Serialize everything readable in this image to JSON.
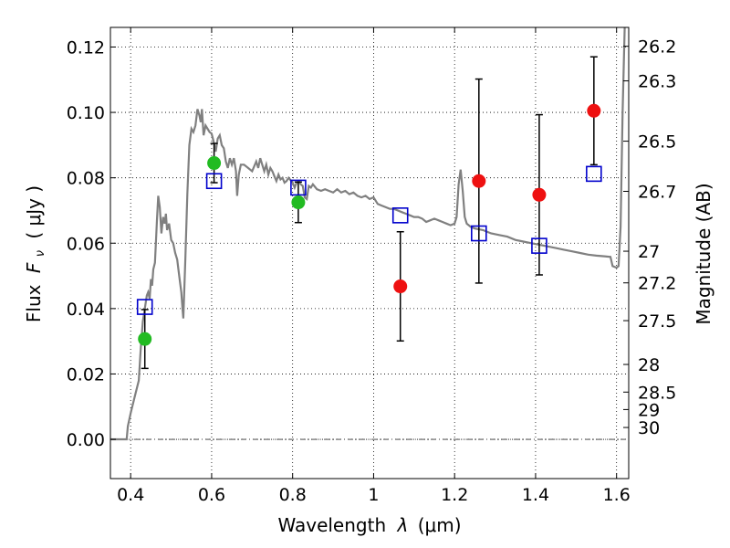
{
  "chart_data": {
    "type": "scatter",
    "xlabel_text": "Wavelength",
    "xlabel_symbol": "λ",
    "xlabel_unit": "(μm)",
    "ylabel_text": "Flux",
    "ylabel_symbol": "F",
    "ylabel_sub": "ν",
    "ylabel_unit": "( μJy )",
    "y2label": "Magnitude (AB)",
    "xlim": [
      0.35,
      1.63
    ],
    "ylim": [
      -0.012,
      0.126
    ],
    "xticks": [
      {
        "v": 0.4,
        "label": "0.4"
      },
      {
        "v": 0.6,
        "label": "0.6"
      },
      {
        "v": 0.8,
        "label": "0.8"
      },
      {
        "v": 1.0,
        "label": "1"
      },
      {
        "v": 1.2,
        "label": "1.2"
      },
      {
        "v": 1.4,
        "label": "1.4"
      },
      {
        "v": 1.6,
        "label": "1.6"
      }
    ],
    "yticks": [
      {
        "v": 0.0,
        "label": "0.00"
      },
      {
        "v": 0.02,
        "label": "0.02"
      },
      {
        "v": 0.04,
        "label": "0.04"
      },
      {
        "v": 0.06,
        "label": "0.06"
      },
      {
        "v": 0.08,
        "label": "0.08"
      },
      {
        "v": 0.1,
        "label": "0.10"
      },
      {
        "v": 0.12,
        "label": "0.12"
      }
    ],
    "mag_ticks": [
      {
        "mag": 26.2,
        "label": "26.2"
      },
      {
        "mag": 26.3,
        "label": "26.3"
      },
      {
        "mag": 26.5,
        "label": "26.5"
      },
      {
        "mag": 26.7,
        "label": "26.7"
      },
      {
        "mag": 27.0,
        "label": "27"
      },
      {
        "mag": 27.2,
        "label": "27.2"
      },
      {
        "mag": 27.5,
        "label": "27.5"
      },
      {
        "mag": 28.0,
        "label": "28"
      },
      {
        "mag": 28.5,
        "label": "28.5"
      },
      {
        "mag": 29.0,
        "label": "29"
      },
      {
        "mag": 30.0,
        "label": "30"
      }
    ],
    "grid": true,
    "zero_line": true,
    "colors": {
      "sed": "#808080",
      "detection": "#22bb22",
      "nondetection": "#ee1111",
      "model": "#0000cc",
      "errorbar": "#000000"
    },
    "detections": [
      {
        "x": 0.435,
        "y": 0.0307,
        "err": 0.009
      },
      {
        "x": 0.606,
        "y": 0.0845,
        "err": 0.006
      },
      {
        "x": 0.814,
        "y": 0.0725,
        "err": 0.0062
      }
    ],
    "nondetections": [
      {
        "x": 1.066,
        "y": 0.0468,
        "err": 0.0167
      },
      {
        "x": 1.26,
        "y": 0.079,
        "err": 0.0312
      },
      {
        "x": 1.409,
        "y": 0.0748,
        "err": 0.0245
      },
      {
        "x": 1.544,
        "y": 0.1005,
        "err": 0.0165
      }
    ],
    "model_photometry": [
      {
        "x": 0.435,
        "y": 0.0405
      },
      {
        "x": 0.606,
        "y": 0.079
      },
      {
        "x": 0.814,
        "y": 0.077
      },
      {
        "x": 1.066,
        "y": 0.0685
      },
      {
        "x": 1.26,
        "y": 0.063
      },
      {
        "x": 1.409,
        "y": 0.0592
      },
      {
        "x": 1.544,
        "y": 0.0812
      }
    ],
    "sed": [
      [
        0.35,
        0.0
      ],
      [
        0.38,
        0.0
      ],
      [
        0.39,
        0.0
      ],
      [
        0.393,
        0.004
      ],
      [
        0.4,
        0.008
      ],
      [
        0.41,
        0.013
      ],
      [
        0.42,
        0.018
      ],
      [
        0.425,
        0.028
      ],
      [
        0.43,
        0.036
      ],
      [
        0.435,
        0.04
      ],
      [
        0.44,
        0.044
      ],
      [
        0.443,
        0.045
      ],
      [
        0.447,
        0.043
      ],
      [
        0.45,
        0.049
      ],
      [
        0.453,
        0.047
      ],
      [
        0.456,
        0.052
      ],
      [
        0.46,
        0.054
      ],
      [
        0.465,
        0.067
      ],
      [
        0.468,
        0.0745
      ],
      [
        0.472,
        0.071
      ],
      [
        0.476,
        0.063
      ],
      [
        0.48,
        0.068
      ],
      [
        0.484,
        0.066
      ],
      [
        0.487,
        0.069
      ],
      [
        0.49,
        0.064
      ],
      [
        0.495,
        0.066
      ],
      [
        0.5,
        0.061
      ],
      [
        0.505,
        0.06
      ],
      [
        0.51,
        0.057
      ],
      [
        0.515,
        0.055
      ],
      [
        0.52,
        0.05
      ],
      [
        0.525,
        0.045
      ],
      [
        0.528,
        0.04
      ],
      [
        0.53,
        0.037
      ],
      [
        0.535,
        0.055
      ],
      [
        0.54,
        0.075
      ],
      [
        0.545,
        0.09
      ],
      [
        0.55,
        0.095
      ],
      [
        0.555,
        0.094
      ],
      [
        0.56,
        0.096
      ],
      [
        0.565,
        0.101
      ],
      [
        0.57,
        0.099
      ],
      [
        0.573,
        0.097
      ],
      [
        0.576,
        0.101
      ],
      [
        0.58,
        0.093
      ],
      [
        0.585,
        0.096
      ],
      [
        0.59,
        0.095
      ],
      [
        0.595,
        0.094
      ],
      [
        0.6,
        0.0935
      ],
      [
        0.605,
        0.091
      ],
      [
        0.61,
        0.088
      ],
      [
        0.615,
        0.092
      ],
      [
        0.62,
        0.093
      ],
      [
        0.625,
        0.09
      ],
      [
        0.63,
        0.089
      ],
      [
        0.635,
        0.085
      ],
      [
        0.64,
        0.083
      ],
      [
        0.645,
        0.086
      ],
      [
        0.65,
        0.084
      ],
      [
        0.655,
        0.086
      ],
      [
        0.66,
        0.082
      ],
      [
        0.663,
        0.0745
      ],
      [
        0.667,
        0.081
      ],
      [
        0.672,
        0.084
      ],
      [
        0.68,
        0.084
      ],
      [
        0.69,
        0.083
      ],
      [
        0.7,
        0.082
      ],
      [
        0.71,
        0.085
      ],
      [
        0.715,
        0.083
      ],
      [
        0.72,
        0.086
      ],
      [
        0.725,
        0.084
      ],
      [
        0.73,
        0.082
      ],
      [
        0.735,
        0.084
      ],
      [
        0.74,
        0.081
      ],
      [
        0.745,
        0.083
      ],
      [
        0.75,
        0.082
      ],
      [
        0.755,
        0.0805
      ],
      [
        0.76,
        0.079
      ],
      [
        0.765,
        0.081
      ],
      [
        0.77,
        0.0795
      ],
      [
        0.775,
        0.08
      ],
      [
        0.78,
        0.0785
      ],
      [
        0.785,
        0.079
      ],
      [
        0.79,
        0.08
      ],
      [
        0.8,
        0.0785
      ],
      [
        0.805,
        0.077
      ],
      [
        0.81,
        0.0785
      ],
      [
        0.815,
        0.079
      ],
      [
        0.82,
        0.078
      ],
      [
        0.825,
        0.0775
      ],
      [
        0.83,
        0.074
      ],
      [
        0.835,
        0.0735
      ],
      [
        0.84,
        0.0775
      ],
      [
        0.845,
        0.077
      ],
      [
        0.85,
        0.078
      ],
      [
        0.86,
        0.0765
      ],
      [
        0.87,
        0.076
      ],
      [
        0.88,
        0.0765
      ],
      [
        0.89,
        0.076
      ],
      [
        0.9,
        0.0755
      ],
      [
        0.91,
        0.0765
      ],
      [
        0.92,
        0.0755
      ],
      [
        0.93,
        0.076
      ],
      [
        0.94,
        0.075
      ],
      [
        0.95,
        0.0755
      ],
      [
        0.96,
        0.0745
      ],
      [
        0.97,
        0.074
      ],
      [
        0.98,
        0.0745
      ],
      [
        0.99,
        0.0735
      ],
      [
        1.0,
        0.074
      ],
      [
        1.01,
        0.072
      ],
      [
        1.02,
        0.0715
      ],
      [
        1.03,
        0.071
      ],
      [
        1.04,
        0.0705
      ],
      [
        1.05,
        0.0705
      ],
      [
        1.06,
        0.07
      ],
      [
        1.07,
        0.0695
      ],
      [
        1.08,
        0.069
      ],
      [
        1.09,
        0.0685
      ],
      [
        1.1,
        0.068
      ],
      [
        1.11,
        0.068
      ],
      [
        1.12,
        0.0675
      ],
      [
        1.13,
        0.0665
      ],
      [
        1.14,
        0.067
      ],
      [
        1.15,
        0.0675
      ],
      [
        1.16,
        0.067
      ],
      [
        1.17,
        0.0665
      ],
      [
        1.18,
        0.066
      ],
      [
        1.19,
        0.0655
      ],
      [
        1.2,
        0.066
      ],
      [
        1.205,
        0.068
      ],
      [
        1.21,
        0.078
      ],
      [
        1.215,
        0.0825
      ],
      [
        1.22,
        0.076
      ],
      [
        1.225,
        0.068
      ],
      [
        1.23,
        0.066
      ],
      [
        1.24,
        0.065
      ],
      [
        1.25,
        0.0645
      ],
      [
        1.27,
        0.064
      ],
      [
        1.29,
        0.063
      ],
      [
        1.31,
        0.0625
      ],
      [
        1.33,
        0.062
      ],
      [
        1.35,
        0.061
      ],
      [
        1.37,
        0.0605
      ],
      [
        1.39,
        0.06
      ],
      [
        1.41,
        0.0595
      ],
      [
        1.43,
        0.059
      ],
      [
        1.45,
        0.0585
      ],
      [
        1.47,
        0.058
      ],
      [
        1.49,
        0.0575
      ],
      [
        1.51,
        0.057
      ],
      [
        1.53,
        0.0565
      ],
      [
        1.55,
        0.0562
      ],
      [
        1.57,
        0.056
      ],
      [
        1.585,
        0.0558
      ],
      [
        1.59,
        0.053
      ],
      [
        1.6,
        0.0525
      ],
      [
        1.605,
        0.053
      ],
      [
        1.61,
        0.065
      ],
      [
        1.615,
        0.1
      ],
      [
        1.62,
        0.126
      ]
    ]
  }
}
